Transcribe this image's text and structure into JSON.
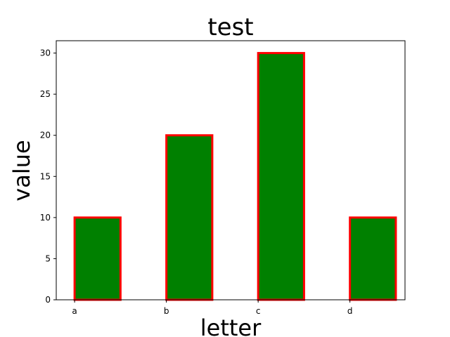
{
  "chart_data": {
    "type": "bar",
    "title": "test",
    "xlabel": "letter",
    "ylabel": "value",
    "categories": [
      "a",
      "b",
      "c",
      "d"
    ],
    "values": [
      10,
      20,
      30,
      10
    ],
    "ylim": [
      0,
      31.5
    ],
    "yticks": [
      0,
      5,
      10,
      15,
      20,
      25,
      30
    ],
    "grid": false,
    "legend": "none",
    "colors": {
      "bar_fill": "#008000",
      "bar_edge": "#ff0000",
      "axes": "#000000",
      "background": "#ffffff"
    }
  }
}
